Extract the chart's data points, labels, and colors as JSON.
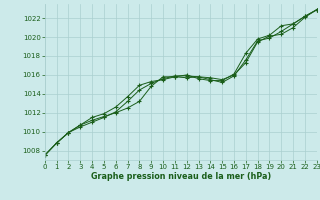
{
  "title": "Graphe pression niveau de la mer (hPa)",
  "bg_color": "#cceaea",
  "grid_color": "#aacfcf",
  "line_color": "#1a5e1a",
  "xlim": [
    0,
    23
  ],
  "ylim": [
    1007.0,
    1023.5
  ],
  "yticks": [
    1008,
    1010,
    1012,
    1014,
    1016,
    1018,
    1020,
    1022
  ],
  "xticks": [
    0,
    1,
    2,
    3,
    4,
    5,
    6,
    7,
    8,
    9,
    10,
    11,
    12,
    13,
    14,
    15,
    16,
    17,
    18,
    19,
    20,
    21,
    22,
    23
  ],
  "series1_x": [
    0,
    1,
    2,
    3,
    4,
    5,
    6,
    7,
    8,
    9,
    10,
    11,
    12,
    13,
    14,
    15,
    16,
    17,
    18,
    19,
    20,
    21,
    22,
    23
  ],
  "series1_y": [
    1007.5,
    1008.8,
    1009.9,
    1010.7,
    1011.2,
    1011.6,
    1012.0,
    1012.5,
    1013.2,
    1014.8,
    1015.8,
    1015.8,
    1015.7,
    1015.8,
    1015.7,
    1015.5,
    1016.0,
    1017.3,
    1019.5,
    1020.1,
    1020.3,
    1021.0,
    1022.1,
    1022.9
  ],
  "series2_x": [
    0,
    1,
    2,
    3,
    4,
    5,
    6,
    7,
    8,
    9,
    10,
    11,
    12,
    13,
    14,
    15,
    16,
    17,
    18,
    19,
    20,
    21,
    22,
    23
  ],
  "series2_y": [
    1007.5,
    1008.8,
    1009.9,
    1010.7,
    1011.5,
    1011.9,
    1012.6,
    1013.7,
    1014.9,
    1015.3,
    1015.5,
    1015.8,
    1016.0,
    1015.6,
    1015.4,
    1015.4,
    1016.1,
    1018.3,
    1019.8,
    1020.2,
    1021.2,
    1021.4,
    1022.2,
    1022.9
  ],
  "series3_x": [
    0,
    1,
    2,
    3,
    4,
    5,
    6,
    7,
    8,
    9,
    10,
    11,
    12,
    13,
    14,
    15,
    16,
    17,
    18,
    19,
    20,
    21,
    22,
    23
  ],
  "series3_y": [
    1007.5,
    1008.8,
    1009.9,
    1010.5,
    1011.0,
    1011.5,
    1012.1,
    1013.2,
    1014.4,
    1015.1,
    1015.6,
    1015.9,
    1015.9,
    1015.8,
    1015.5,
    1015.2,
    1015.9,
    1017.6,
    1019.6,
    1019.9,
    1020.6,
    1021.4,
    1022.2,
    1022.9
  ]
}
